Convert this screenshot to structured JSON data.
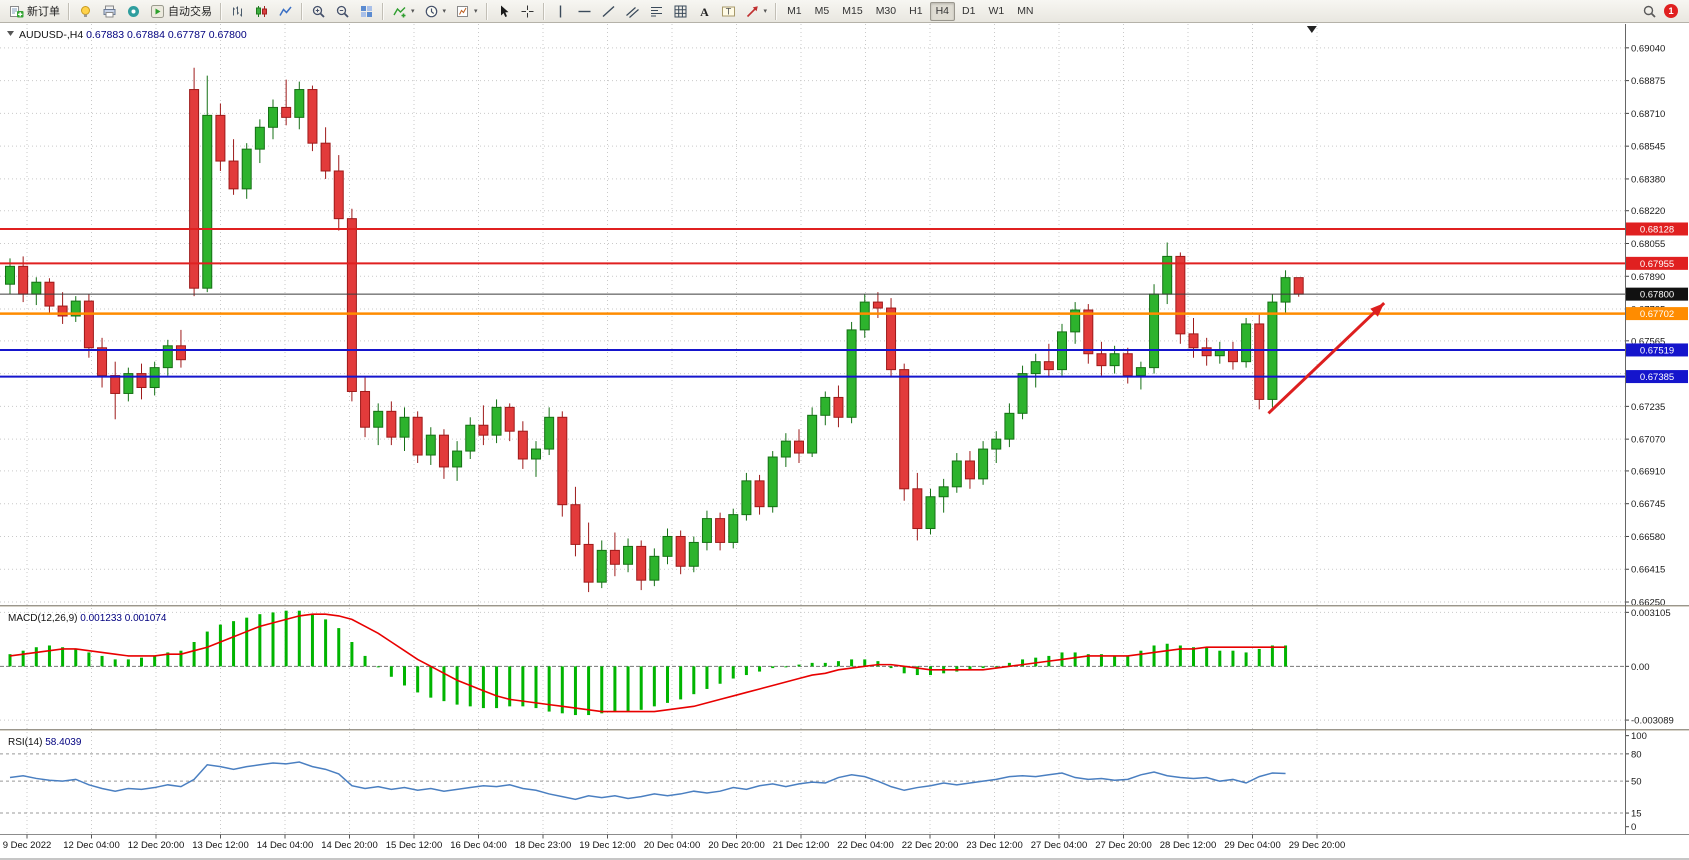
{
  "toolbar": {
    "new_order": {
      "label": "新订单"
    },
    "autotrade": {
      "label": "自动交易"
    },
    "left_icons": [
      "ideas",
      "print",
      "expert"
    ],
    "icon_groups": [
      [
        "chart-bars",
        "chart-candles",
        "chart-line"
      ],
      [
        "zoom-in",
        "zoom-out",
        "tile"
      ],
      [
        {
          "icon": "indicators",
          "dd": true
        },
        {
          "icon": "periods",
          "dd": true
        },
        {
          "icon": "templates",
          "dd": true
        }
      ],
      [
        "cursor",
        "crosshair"
      ],
      [
        "vline",
        "hline",
        "trendline",
        "channel",
        "fibonacci",
        "shapes",
        "text",
        "text-label",
        {
          "icon": "arrow-tool",
          "dd": true
        }
      ]
    ],
    "timeframes": [
      "M1",
      "M5",
      "M15",
      "M30",
      "H1",
      "H4",
      "D1",
      "W1",
      "MN"
    ],
    "active_timeframe": "H4",
    "notification_count": "1"
  },
  "colors": {
    "up_fill": "#2db32d",
    "up_stroke": "#157015",
    "down_fill": "#e23b3b",
    "down_stroke": "#9e1a1a",
    "grid": "#c9c9c9",
    "macd_hist": "#00b400",
    "macd_signal": "#e80000",
    "rsi_line": "#4a7fc1",
    "axis_text": "#1a1a1a",
    "title_num": "#00007f",
    "arrow": "#dd1f1f",
    "bid_line": "#3c3c3c"
  },
  "chart_data": [
    {
      "type": "candlestick",
      "symbol": "AUDUSD-,H4",
      "ohlc_display": "0.67883 0.67884 0.67787 0.67800",
      "timeframe": "H4",
      "ylim": [
        0.66235,
        0.6916
      ],
      "y_ticks": [
        "0.69040",
        "0.68875",
        "0.68710",
        "0.68545",
        "0.68380",
        "0.68220",
        "0.68055",
        "0.67890",
        "0.67725",
        "0.67565",
        "0.67400",
        "0.67235",
        "0.67070",
        "0.66910",
        "0.66745",
        "0.66580",
        "0.66415",
        "0.66250"
      ],
      "x_labels": [
        "9 Dec 2022",
        "12 Dec 04:00",
        "12 Dec 20:00",
        "13 Dec 12:00",
        "14 Dec 04:00",
        "14 Dec 20:00",
        "15 Dec 12:00",
        "16 Dec 04:00",
        "18 Dec 23:00",
        "19 Dec 12:00",
        "20 Dec 04:00",
        "20 Dec 20:00",
        "21 Dec 12:00",
        "22 Dec 04:00",
        "22 Dec 20:00",
        "23 Dec 12:00",
        "27 Dec 04:00",
        "27 Dec 20:00",
        "28 Dec 12:00",
        "29 Dec 04:00",
        "29 Dec 20:00"
      ],
      "hlines": [
        {
          "price": 0.68128,
          "label": "0.68128",
          "color": "#e02020",
          "width": 2
        },
        {
          "price": 0.67955,
          "label": "0.67955",
          "color": "#e02020",
          "width": 2
        },
        {
          "price": 0.678,
          "label": "0.67800",
          "color": "#3c3c3c",
          "width": 1,
          "badge": "#111111"
        },
        {
          "price": 0.67702,
          "label": "0.67702",
          "color": "#ff8c00",
          "width": 2.5
        },
        {
          "price": 0.67519,
          "label": "0.67519",
          "color": "#1515cc",
          "width": 2
        },
        {
          "price": 0.67385,
          "label": "0.67385",
          "color": "#1515cc",
          "width": 2
        }
      ],
      "arrow": {
        "x1_bar": 95.7,
        "price1": 0.672,
        "x2_bar": 104.5,
        "price2": 0.67755
      },
      "shift_marker_bar": 99,
      "candles": [
        [
          0.6785,
          0.6798,
          0.678,
          0.6794
        ],
        [
          0.6794,
          0.6799,
          0.6776,
          0.678
        ],
        [
          0.678,
          0.67885,
          0.67745,
          0.6786
        ],
        [
          0.6786,
          0.6788,
          0.677,
          0.6774
        ],
        [
          0.6774,
          0.6781,
          0.6765,
          0.6769
        ],
        [
          0.6769,
          0.6779,
          0.6766,
          0.67765
        ],
        [
          0.67765,
          0.678,
          0.6748,
          0.6753
        ],
        [
          0.6753,
          0.6758,
          0.6733,
          0.6739
        ],
        [
          0.6739,
          0.6746,
          0.6717,
          0.673
        ],
        [
          0.673,
          0.6743,
          0.6726,
          0.674
        ],
        [
          0.674,
          0.6745,
          0.6727,
          0.6733
        ],
        [
          0.6733,
          0.6746,
          0.6729,
          0.6743
        ],
        [
          0.6743,
          0.6757,
          0.6739,
          0.6754
        ],
        [
          0.6754,
          0.6762,
          0.6743,
          0.6747
        ],
        [
          0.6883,
          0.6894,
          0.6779,
          0.6783
        ],
        [
          0.6783,
          0.689,
          0.6781,
          0.687
        ],
        [
          0.687,
          0.6876,
          0.6842,
          0.6847
        ],
        [
          0.6847,
          0.6858,
          0.683,
          0.6833
        ],
        [
          0.6833,
          0.6856,
          0.6828,
          0.6853
        ],
        [
          0.6853,
          0.6868,
          0.6846,
          0.6864
        ],
        [
          0.6864,
          0.6878,
          0.6858,
          0.6874
        ],
        [
          0.6874,
          0.6888,
          0.6865,
          0.6869
        ],
        [
          0.6869,
          0.6887,
          0.6863,
          0.6883
        ],
        [
          0.6883,
          0.6885,
          0.6852,
          0.6856
        ],
        [
          0.6856,
          0.6864,
          0.6838,
          0.6842
        ],
        [
          0.6842,
          0.685,
          0.6812,
          0.6818
        ],
        [
          0.6818,
          0.6823,
          0.6726,
          0.6731
        ],
        [
          0.6731,
          0.6738,
          0.6708,
          0.6713
        ],
        [
          0.6713,
          0.6725,
          0.6704,
          0.6721
        ],
        [
          0.6721,
          0.6726,
          0.6704,
          0.6708
        ],
        [
          0.6708,
          0.6723,
          0.6701,
          0.6718
        ],
        [
          0.6718,
          0.6721,
          0.6695,
          0.6699
        ],
        [
          0.6699,
          0.6713,
          0.6694,
          0.6709
        ],
        [
          0.6709,
          0.6712,
          0.6687,
          0.6693
        ],
        [
          0.6693,
          0.6706,
          0.6686,
          0.6701
        ],
        [
          0.6701,
          0.6718,
          0.6697,
          0.6714
        ],
        [
          0.6714,
          0.6724,
          0.6704,
          0.6709
        ],
        [
          0.6709,
          0.6727,
          0.6705,
          0.6723
        ],
        [
          0.6723,
          0.6725,
          0.6706,
          0.6711
        ],
        [
          0.6711,
          0.6716,
          0.6692,
          0.6697
        ],
        [
          0.6697,
          0.6706,
          0.6688,
          0.6702
        ],
        [
          0.6702,
          0.6723,
          0.6699,
          0.6718
        ],
        [
          0.6718,
          0.6721,
          0.6668,
          0.6674
        ],
        [
          0.6674,
          0.6683,
          0.6648,
          0.6654
        ],
        [
          0.6654,
          0.6665,
          0.663,
          0.6635
        ],
        [
          0.6635,
          0.6656,
          0.6632,
          0.6651
        ],
        [
          0.6651,
          0.666,
          0.6638,
          0.6644
        ],
        [
          0.6644,
          0.6657,
          0.664,
          0.6653
        ],
        [
          0.6653,
          0.6656,
          0.6631,
          0.6636
        ],
        [
          0.6636,
          0.6652,
          0.6633,
          0.6648
        ],
        [
          0.6648,
          0.6662,
          0.6644,
          0.6658
        ],
        [
          0.6658,
          0.6661,
          0.6639,
          0.6643
        ],
        [
          0.6643,
          0.6658,
          0.664,
          0.6655
        ],
        [
          0.6655,
          0.6671,
          0.6651,
          0.6667
        ],
        [
          0.6667,
          0.667,
          0.6651,
          0.6655
        ],
        [
          0.6655,
          0.6672,
          0.6652,
          0.6669
        ],
        [
          0.6669,
          0.669,
          0.6666,
          0.6686
        ],
        [
          0.6686,
          0.6689,
          0.6669,
          0.6673
        ],
        [
          0.6673,
          0.6701,
          0.667,
          0.6698
        ],
        [
          0.6698,
          0.671,
          0.6693,
          0.6706
        ],
        [
          0.6706,
          0.6712,
          0.6695,
          0.67
        ],
        [
          0.67,
          0.6723,
          0.6698,
          0.6719
        ],
        [
          0.6719,
          0.6731,
          0.6714,
          0.6728
        ],
        [
          0.6728,
          0.6734,
          0.6713,
          0.6718
        ],
        [
          0.6718,
          0.6766,
          0.6715,
          0.6762
        ],
        [
          0.6762,
          0.678,
          0.6758,
          0.6776
        ],
        [
          0.6776,
          0.6781,
          0.6768,
          0.6773
        ],
        [
          0.6773,
          0.6778,
          0.6738,
          0.6742
        ],
        [
          0.6742,
          0.6745,
          0.6676,
          0.6682
        ],
        [
          0.6682,
          0.669,
          0.6656,
          0.6662
        ],
        [
          0.6662,
          0.6682,
          0.6659,
          0.6678
        ],
        [
          0.6678,
          0.6687,
          0.667,
          0.6683
        ],
        [
          0.6683,
          0.67,
          0.668,
          0.6696
        ],
        [
          0.6696,
          0.6701,
          0.6682,
          0.6687
        ],
        [
          0.6687,
          0.6706,
          0.6684,
          0.6702
        ],
        [
          0.6702,
          0.6711,
          0.6695,
          0.6707
        ],
        [
          0.6707,
          0.6725,
          0.6703,
          0.672
        ],
        [
          0.672,
          0.6744,
          0.6717,
          0.674
        ],
        [
          0.674,
          0.675,
          0.6733,
          0.6746
        ],
        [
          0.6746,
          0.6755,
          0.6738,
          0.6742
        ],
        [
          0.6742,
          0.6765,
          0.6739,
          0.6761
        ],
        [
          0.6761,
          0.6776,
          0.6755,
          0.6772
        ],
        [
          0.6772,
          0.6775,
          0.6745,
          0.675
        ],
        [
          0.675,
          0.6756,
          0.6739,
          0.6744
        ],
        [
          0.6744,
          0.6754,
          0.674,
          0.675
        ],
        [
          0.675,
          0.6753,
          0.6735,
          0.6739
        ],
        [
          0.6739,
          0.6746,
          0.6732,
          0.6743
        ],
        [
          0.6743,
          0.6785,
          0.674,
          0.678
        ],
        [
          0.678,
          0.6806,
          0.6775,
          0.6799
        ],
        [
          0.6799,
          0.6801,
          0.6755,
          0.676
        ],
        [
          0.676,
          0.6768,
          0.6748,
          0.6753
        ],
        [
          0.6753,
          0.6758,
          0.6744,
          0.6749
        ],
        [
          0.6749,
          0.6756,
          0.6745,
          0.6752
        ],
        [
          0.6752,
          0.6756,
          0.6742,
          0.6746
        ],
        [
          0.6746,
          0.6768,
          0.6743,
          0.6765
        ],
        [
          0.6765,
          0.677,
          0.6722,
          0.6727
        ],
        [
          0.6727,
          0.678,
          0.6723,
          0.6776
        ],
        [
          0.6776,
          0.6792,
          0.677,
          0.67883
        ],
        [
          0.67883,
          0.67884,
          0.67787,
          0.678
        ]
      ]
    },
    {
      "type": "macd_histogram",
      "label": "MACD(12,26,9)",
      "main_value": "0.001233",
      "signal_value": "0.001074",
      "ylim": [
        -0.003602,
        0.003355
      ],
      "y_ticks": [
        {
          "v": 0.003105,
          "label": "0.003105"
        },
        {
          "v": 0,
          "label": "0.00"
        },
        {
          "v": -0.003089,
          "label": "-0.003089"
        }
      ],
      "histogram": [
        0.0007,
        0.0009,
        0.0011,
        0.0012,
        0.0011,
        0.001,
        0.0008,
        0.0006,
        0.0004,
        0.0004,
        0.0005,
        0.0006,
        0.0008,
        0.0009,
        0.0014,
        0.002,
        0.0024,
        0.0026,
        0.0028,
        0.003,
        0.0031,
        0.0032,
        0.0032,
        0.003,
        0.0027,
        0.0022,
        0.0014,
        0.0006,
        0.0,
        -0.0006,
        -0.0011,
        -0.0015,
        -0.0018,
        -0.002,
        -0.0022,
        -0.0023,
        -0.0024,
        -0.0024,
        -0.0023,
        -0.0023,
        -0.0024,
        -0.0026,
        -0.0027,
        -0.0028,
        -0.0028,
        -0.0027,
        -0.0026,
        -0.0026,
        -0.0025,
        -0.0023,
        -0.0021,
        -0.0019,
        -0.0016,
        -0.0013,
        -0.001,
        -0.0007,
        -0.0005,
        -0.0003,
        -0.0001,
        0.0,
        0.0001,
        0.0002,
        0.0002,
        0.0003,
        0.0004,
        0.0004,
        0.0003,
        -0.0001,
        -0.0004,
        -0.0005,
        -0.0005,
        -0.0004,
        -0.0003,
        -0.0002,
        -0.0001,
        0.0,
        0.0002,
        0.0004,
        0.0005,
        0.0006,
        0.0008,
        0.0008,
        0.0007,
        0.0007,
        0.0006,
        0.0006,
        0.0009,
        0.0012,
        0.0013,
        0.0012,
        0.0011,
        0.0011,
        0.0009,
        0.0009,
        0.0008,
        0.001,
        0.0012,
        0.0012
      ],
      "signal": [
        0.0006,
        0.0007,
        0.0008,
        0.0009,
        0.001,
        0.001,
        0.0009,
        0.0008,
        0.0007,
        0.0006,
        0.0006,
        0.0006,
        0.0007,
        0.0007,
        0.0009,
        0.0011,
        0.0014,
        0.0017,
        0.002,
        0.0023,
        0.0025,
        0.0027,
        0.0029,
        0.003,
        0.003,
        0.0029,
        0.0027,
        0.0023,
        0.0019,
        0.0014,
        0.0009,
        0.0004,
        0.0,
        -0.0004,
        -0.0008,
        -0.0011,
        -0.0014,
        -0.0017,
        -0.0019,
        -0.002,
        -0.0021,
        -0.0022,
        -0.0023,
        -0.0024,
        -0.0025,
        -0.0026,
        -0.0026,
        -0.0026,
        -0.0026,
        -0.0026,
        -0.0025,
        -0.0024,
        -0.0023,
        -0.0021,
        -0.0019,
        -0.0017,
        -0.0015,
        -0.0013,
        -0.0011,
        -0.0009,
        -0.0007,
        -0.0005,
        -0.0004,
        -0.0002,
        -0.0001,
        0.0,
        0.0001,
        0.0001,
        0.0,
        -0.0001,
        -0.0002,
        -0.0002,
        -0.0002,
        -0.0002,
        -0.0002,
        -0.0001,
        0.0,
        0.0001,
        0.0002,
        0.0003,
        0.0004,
        0.0005,
        0.0006,
        0.0006,
        0.0006,
        0.0006,
        0.0007,
        0.0008,
        0.0009,
        0.001,
        0.001,
        0.0011,
        0.0011,
        0.0011,
        0.0011,
        0.0011,
        0.0011,
        0.0011
      ]
    },
    {
      "type": "rsi_line",
      "label": "RSI(14)",
      "value": "58.4039",
      "ylim": [
        -8,
        104
      ],
      "levels": [
        80,
        50,
        15
      ],
      "y_ticks": [
        {
          "v": 100,
          "label": "100"
        },
        {
          "v": 80,
          "label": "80"
        },
        {
          "v": 50,
          "label": "50"
        },
        {
          "v": 15,
          "label": "15"
        },
        {
          "v": 0,
          "label": "0"
        }
      ],
      "values": [
        54,
        56,
        53,
        51,
        50,
        52,
        46,
        42,
        39,
        42,
        41,
        43,
        46,
        44,
        52,
        68,
        66,
        63,
        66,
        68,
        70,
        69,
        71,
        66,
        63,
        58,
        45,
        42,
        44,
        41,
        43,
        40,
        42,
        39,
        41,
        43,
        45,
        44,
        46,
        42,
        40,
        36,
        33,
        30,
        34,
        32,
        34,
        31,
        33,
        36,
        34,
        36,
        39,
        37,
        39,
        43,
        41,
        45,
        47,
        44,
        47,
        49,
        48,
        54,
        57,
        55,
        50,
        44,
        40,
        43,
        45,
        48,
        46,
        48,
        50,
        52,
        55,
        56,
        55,
        57,
        59,
        54,
        52,
        53,
        51,
        52,
        57,
        60,
        56,
        54,
        53,
        54,
        50,
        52,
        48,
        55,
        59,
        58.4
      ]
    }
  ]
}
